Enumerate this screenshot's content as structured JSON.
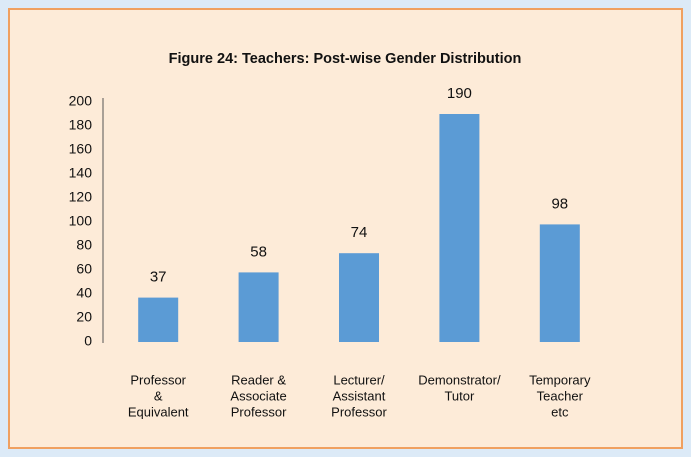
{
  "chart_data": {
    "type": "bar",
    "title": "Figure 24: Teachers: Post-wise Gender Distribution",
    "categories": [
      [
        "Professor",
        "&",
        "Equivalent"
      ],
      [
        "Reader &",
        "Associate",
        "Professor"
      ],
      [
        "Lecturer/",
        "Assistant",
        "Professor"
      ],
      [
        "Demonstrator/",
        "Tutor"
      ],
      [
        "Temporary",
        "Teacher",
        "etc"
      ]
    ],
    "values": [
      37,
      58,
      74,
      190,
      98
    ],
    "color": "#5b9bd5",
    "ylim": [
      0,
      200
    ],
    "yticks": [
      0,
      20,
      40,
      60,
      80,
      100,
      120,
      140,
      160,
      180,
      200
    ],
    "grid": false
  }
}
